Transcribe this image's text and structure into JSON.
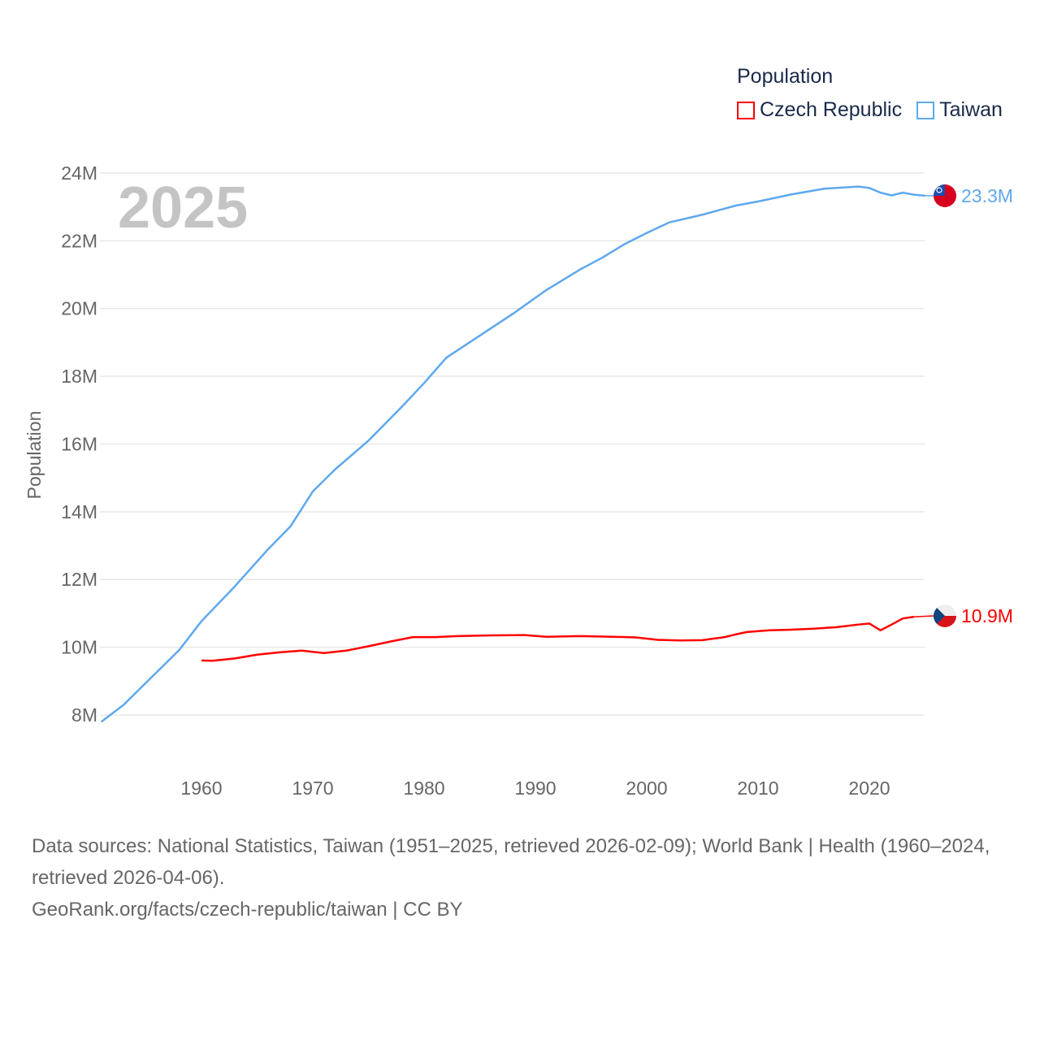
{
  "chart_data": {
    "type": "line",
    "title": "2025",
    "xlabel": "",
    "ylabel": "Population",
    "xlim": [
      1951,
      2025
    ],
    "ylim": [
      7.6,
      24
    ],
    "x_ticks": [
      "1960",
      "1970",
      "1980",
      "1990",
      "2000",
      "2010",
      "2020"
    ],
    "y_ticks": [
      "8M",
      "10M",
      "12M",
      "14M",
      "16M",
      "18M",
      "20M",
      "22M",
      "24M"
    ],
    "grid": true,
    "legend": {
      "title": "Population",
      "placement": "top-right"
    },
    "series": [
      {
        "name": "Czech Republic",
        "color": "#ff0000",
        "end_label": "10.9M",
        "flag": "czech-flag",
        "x": [
          1960,
          1961,
          1963,
          1965,
          1967,
          1969,
          1971,
          1973,
          1975,
          1977,
          1979,
          1981,
          1983,
          1986,
          1989,
          1991,
          1994,
          1997,
          1999,
          2001,
          2003,
          2005,
          2007,
          2008,
          2009,
          2011,
          2013,
          2015,
          2017,
          2019,
          2020,
          2021,
          2022,
          2023,
          2024
        ],
        "y": [
          9.61,
          9.6,
          9.67,
          9.78,
          9.85,
          9.9,
          9.83,
          9.9,
          10.03,
          10.17,
          10.3,
          10.3,
          10.33,
          10.35,
          10.36,
          10.31,
          10.33,
          10.31,
          10.29,
          10.22,
          10.2,
          10.21,
          10.3,
          10.38,
          10.45,
          10.5,
          10.52,
          10.55,
          10.59,
          10.67,
          10.7,
          10.5,
          10.67,
          10.85,
          10.9
        ]
      },
      {
        "name": "Taiwan",
        "color": "#5ea8ee",
        "end_label": "23.3M",
        "flag": "taiwan-flag",
        "x": [
          1951,
          1953,
          1958,
          1960,
          1963,
          1966,
          1968,
          1970,
          1972,
          1975,
          1978,
          1980,
          1982,
          1985,
          1988,
          1991,
          1994,
          1996,
          1998,
          2000,
          2002,
          2005,
          2008,
          2010,
          2013,
          2016,
          2019,
          2020,
          2021,
          2022,
          2023,
          2024,
          2025
        ],
        "y": [
          7.8,
          8.3,
          9.92,
          10.77,
          11.8,
          12.9,
          13.57,
          14.6,
          15.25,
          16.1,
          17.1,
          17.8,
          18.55,
          19.2,
          19.85,
          20.55,
          21.15,
          21.5,
          21.9,
          22.23,
          22.54,
          22.77,
          23.04,
          23.16,
          23.37,
          23.54,
          23.6,
          23.56,
          23.42,
          23.34,
          23.42,
          23.36,
          23.33
        ]
      }
    ]
  },
  "source": {
    "line1": "Data sources: National Statistics, Taiwan (1951–2025, retrieved 2026-02-09); World Bank | Health (1960–2024, retrieved 2026-04-06).",
    "line2": "GeoRank.org/facts/czech-republic/taiwan | CC BY"
  }
}
